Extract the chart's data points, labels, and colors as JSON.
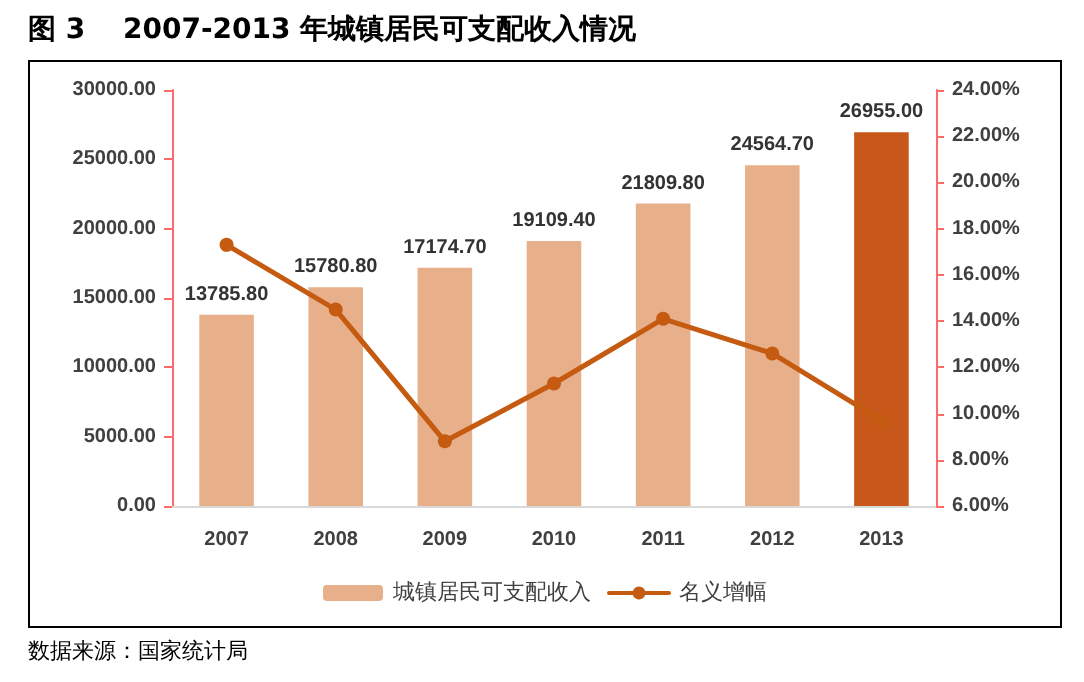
{
  "chart_data": {
    "type": "bar",
    "title": "图 3　 2007-2013 年城镇居民可支配收入情况",
    "categories": [
      "2007",
      "2008",
      "2009",
      "2010",
      "2011",
      "2012",
      "2013"
    ],
    "series": [
      {
        "name": "城镇居民可支配收入",
        "color": "#e8b08a",
        "colors": [
          "#e8b08a",
          "#e8b08a",
          "#e8b08a",
          "#e8b08a",
          "#e8b08a",
          "#e8b08a",
          "#c8581a"
        ],
        "values": [
          13785.8,
          15780.8,
          17174.7,
          19109.4,
          21809.8,
          24564.7,
          26955.0
        ],
        "value_labels": [
          "13785.80",
          "15780.80",
          "17174.70",
          "19109.40",
          "21809.80",
          "24564.70",
          "26955.00"
        ]
      },
      {
        "name": "名义增幅",
        "type": "line",
        "axis": "y2",
        "color": "#c55a11",
        "marker": "circle",
        "values": [
          17.3,
          14.5,
          8.8,
          11.3,
          14.1,
          12.6,
          9.7
        ]
      }
    ],
    "ylim": [
      0,
      30000
    ],
    "yticks": [
      {
        "value": 0,
        "label": "0.00"
      },
      {
        "value": 5000,
        "label": "5000.00"
      },
      {
        "value": 10000,
        "label": "10000.00"
      },
      {
        "value": 15000,
        "label": "15000.00"
      },
      {
        "value": 20000,
        "label": "20000.00"
      },
      {
        "value": 25000,
        "label": "25000.00"
      },
      {
        "value": 30000,
        "label": "30000.00"
      }
    ],
    "y2lim": [
      6,
      24
    ],
    "y2ticks": [
      {
        "value": 6,
        "label": "6.00%"
      },
      {
        "value": 8,
        "label": "8.00%"
      },
      {
        "value": 10,
        "label": "10.00%"
      },
      {
        "value": 12,
        "label": "12.00%"
      },
      {
        "value": 14,
        "label": "14.00%"
      },
      {
        "value": 16,
        "label": "16.00%"
      },
      {
        "value": 18,
        "label": "18.00%"
      },
      {
        "value": 20,
        "label": "20.00%"
      },
      {
        "value": 22,
        "label": "22.00%"
      },
      {
        "value": 24,
        "label": "24.00%"
      }
    ],
    "grid": false,
    "legend": "bottom",
    "annotations": [
      "数据来源：国家统计局"
    ]
  }
}
